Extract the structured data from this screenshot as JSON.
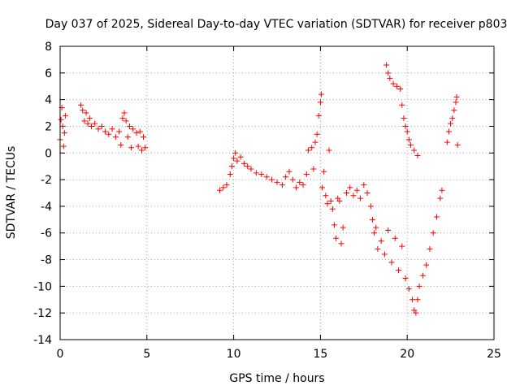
{
  "chart_data": {
    "type": "scatter",
    "title": "Day 037 of 2025, Sidereal Day-to-day VTEC variation (SDTVAR) for receiver p803",
    "xlabel": "GPS time / hours",
    "ylabel": "SDTVAR / TECUs",
    "xlim": [
      0,
      25
    ],
    "ylim": [
      -14,
      8
    ],
    "xticks": [
      0,
      5,
      10,
      15,
      20,
      25
    ],
    "yticks": [
      -14,
      -12,
      -10,
      -8,
      -6,
      -4,
      -2,
      0,
      2,
      4,
      6,
      8
    ],
    "xtick_labels": [
      "0",
      "5",
      "10",
      "15",
      "20",
      "25"
    ],
    "ytick_labels": [
      "-14",
      "-12",
      "-10",
      "-8",
      "-6",
      "-4",
      "-2",
      "0",
      "2",
      "4",
      "6",
      "8"
    ],
    "grid": true,
    "legend": "none",
    "marker": "+",
    "color": "#ff0000",
    "series": [
      {
        "points": [
          [
            0.0,
            1.0
          ],
          [
            0.05,
            2.5
          ],
          [
            0.1,
            3.4
          ],
          [
            0.15,
            2.0
          ],
          [
            0.2,
            0.5
          ],
          [
            0.25,
            1.5
          ],
          [
            0.3,
            2.8
          ],
          [
            1.2,
            3.6
          ],
          [
            1.3,
            3.2
          ],
          [
            1.4,
            2.4
          ],
          [
            1.5,
            3.0
          ],
          [
            1.6,
            2.2
          ],
          [
            1.7,
            2.6
          ],
          [
            1.8,
            2.0
          ],
          [
            2.0,
            2.2
          ],
          [
            2.2,
            1.8
          ],
          [
            2.4,
            2.0
          ],
          [
            2.6,
            1.6
          ],
          [
            2.8,
            1.4
          ],
          [
            3.0,
            1.8
          ],
          [
            3.2,
            1.2
          ],
          [
            3.4,
            1.6
          ],
          [
            3.5,
            0.6
          ],
          [
            3.6,
            2.6
          ],
          [
            3.7,
            3.0
          ],
          [
            3.8,
            2.4
          ],
          [
            3.9,
            1.2
          ],
          [
            4.0,
            2.0
          ],
          [
            4.1,
            0.4
          ],
          [
            4.2,
            1.8
          ],
          [
            4.4,
            1.5
          ],
          [
            4.5,
            0.5
          ],
          [
            4.6,
            1.6
          ],
          [
            4.7,
            0.2
          ],
          [
            4.8,
            1.2
          ],
          [
            4.9,
            0.4
          ],
          [
            9.2,
            -2.8
          ],
          [
            9.4,
            -2.6
          ],
          [
            9.6,
            -2.4
          ],
          [
            9.8,
            -1.6
          ],
          [
            9.9,
            -1.0
          ],
          [
            10.0,
            -0.4
          ],
          [
            10.1,
            0.0
          ],
          [
            10.2,
            -0.6
          ],
          [
            10.4,
            -0.3
          ],
          [
            10.6,
            -0.8
          ],
          [
            10.8,
            -1.0
          ],
          [
            11.0,
            -1.2
          ],
          [
            11.3,
            -1.5
          ],
          [
            11.6,
            -1.6
          ],
          [
            11.9,
            -1.8
          ],
          [
            12.2,
            -2.0
          ],
          [
            12.5,
            -2.2
          ],
          [
            12.8,
            -2.4
          ],
          [
            13.0,
            -1.8
          ],
          [
            13.2,
            -1.4
          ],
          [
            13.4,
            -2.0
          ],
          [
            13.6,
            -2.6
          ],
          [
            13.8,
            -2.2
          ],
          [
            14.0,
            -2.4
          ],
          [
            14.2,
            -1.6
          ],
          [
            14.3,
            0.2
          ],
          [
            14.5,
            0.4
          ],
          [
            14.6,
            -1.2
          ],
          [
            14.7,
            0.8
          ],
          [
            14.8,
            1.4
          ],
          [
            14.9,
            2.8
          ],
          [
            15.0,
            3.8
          ],
          [
            15.05,
            4.4
          ],
          [
            15.1,
            -2.6
          ],
          [
            15.2,
            -1.4
          ],
          [
            15.3,
            -3.2
          ],
          [
            15.4,
            -3.8
          ],
          [
            15.5,
            0.2
          ],
          [
            15.6,
            -3.6
          ],
          [
            15.7,
            -4.2
          ],
          [
            15.8,
            -5.4
          ],
          [
            15.9,
            -6.4
          ],
          [
            16.0,
            -3.4
          ],
          [
            16.1,
            -3.6
          ],
          [
            16.2,
            -6.8
          ],
          [
            16.3,
            -5.6
          ],
          [
            16.5,
            -3.0
          ],
          [
            16.7,
            -2.6
          ],
          [
            16.9,
            -3.2
          ],
          [
            17.1,
            -2.8
          ],
          [
            17.3,
            -3.4
          ],
          [
            17.5,
            -2.4
          ],
          [
            17.7,
            -3.0
          ],
          [
            17.9,
            -4.0
          ],
          [
            18.0,
            -5.0
          ],
          [
            18.1,
            -6.0
          ],
          [
            18.2,
            -5.6
          ],
          [
            18.3,
            -7.2
          ],
          [
            18.5,
            -6.6
          ],
          [
            18.7,
            -7.6
          ],
          [
            18.9,
            -5.8
          ],
          [
            19.1,
            -8.2
          ],
          [
            19.3,
            -6.4
          ],
          [
            19.5,
            -8.8
          ],
          [
            19.7,
            -7.0
          ],
          [
            19.9,
            -9.4
          ],
          [
            20.1,
            -10.2
          ],
          [
            20.3,
            -11.0
          ],
          [
            20.4,
            -11.8
          ],
          [
            20.5,
            -12.0
          ],
          [
            20.6,
            -11.0
          ],
          [
            20.7,
            -10.0
          ],
          [
            20.9,
            -9.2
          ],
          [
            21.1,
            -8.4
          ],
          [
            21.3,
            -7.2
          ],
          [
            21.5,
            -6.0
          ],
          [
            21.7,
            -4.8
          ],
          [
            21.9,
            -3.4
          ],
          [
            22.0,
            -2.8
          ],
          [
            18.8,
            6.6
          ],
          [
            18.9,
            6.0
          ],
          [
            19.0,
            5.6
          ],
          [
            19.2,
            5.2
          ],
          [
            19.4,
            5.0
          ],
          [
            19.6,
            4.8
          ],
          [
            19.7,
            3.6
          ],
          [
            19.8,
            2.6
          ],
          [
            19.9,
            2.0
          ],
          [
            20.0,
            1.6
          ],
          [
            20.1,
            1.0
          ],
          [
            20.2,
            0.6
          ],
          [
            20.4,
            0.2
          ],
          [
            20.6,
            -0.2
          ],
          [
            22.3,
            0.8
          ],
          [
            22.4,
            1.6
          ],
          [
            22.5,
            2.2
          ],
          [
            22.6,
            2.6
          ],
          [
            22.7,
            3.2
          ],
          [
            22.8,
            3.8
          ],
          [
            22.85,
            4.2
          ],
          [
            22.9,
            0.6
          ]
        ]
      }
    ]
  }
}
